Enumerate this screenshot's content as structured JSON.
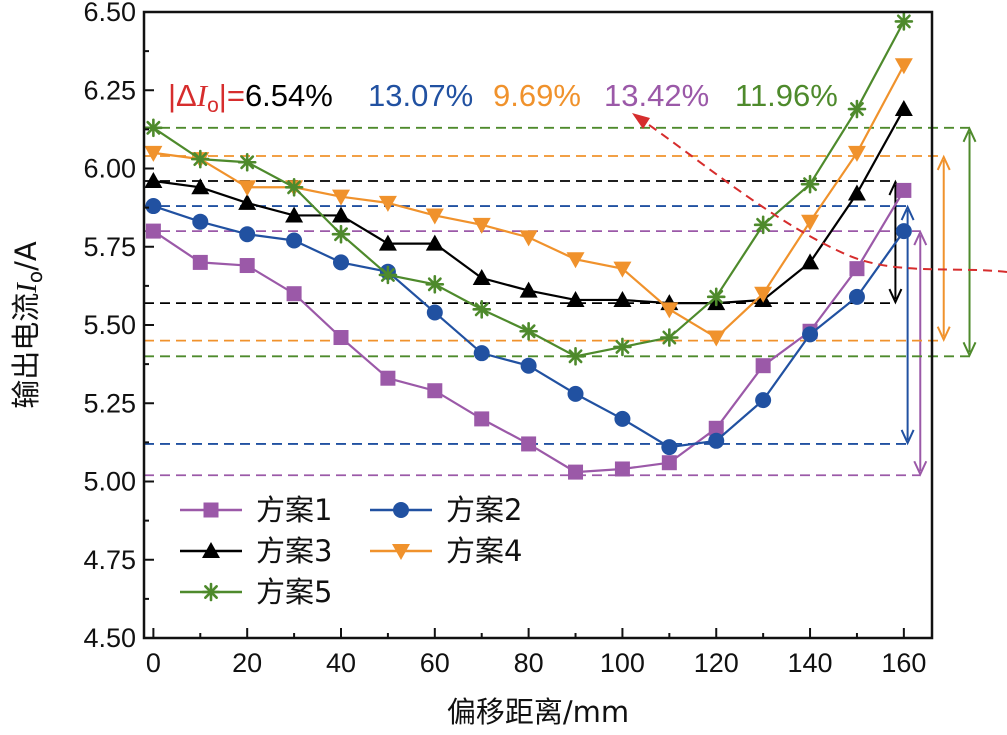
{
  "chart_data": {
    "type": "line",
    "xlabel": "偏移距离/mm",
    "ylabel_parts": {
      "prefix": "输出电流",
      "symbol": "I",
      "subscript": "o",
      "suffix": "/A"
    },
    "xlim": [
      -2,
      166
    ],
    "ylim": [
      4.5,
      6.5
    ],
    "x": [
      0,
      10,
      20,
      30,
      40,
      50,
      60,
      70,
      80,
      90,
      100,
      110,
      120,
      130,
      140,
      150,
      160
    ],
    "xticks": [
      0,
      20,
      40,
      60,
      80,
      100,
      120,
      140,
      160
    ],
    "xtick_labels": [
      "0",
      "20",
      "40",
      "60",
      "80",
      "100",
      "120",
      "140",
      "160"
    ],
    "yticks": [
      4.5,
      4.75,
      5.0,
      5.25,
      5.5,
      5.75,
      6.0,
      6.25,
      6.5
    ],
    "ytick_labels": [
      "4.50",
      "4.75",
      "5.00",
      "5.25",
      "5.50",
      "5.75",
      "6.00",
      "6.25",
      "6.50"
    ],
    "series": [
      {
        "name": "方案1",
        "color": "#9b59a8",
        "marker": "square",
        "values": [
          5.8,
          5.7,
          5.69,
          5.6,
          5.46,
          5.33,
          5.29,
          5.2,
          5.12,
          5.03,
          5.04,
          5.06,
          5.17,
          5.37,
          5.48,
          5.68,
          5.93
        ],
        "ref_max": 5.8,
        "ref_min": 5.02,
        "arrow_x": 163.5
      },
      {
        "name": "方案2",
        "color": "#2151a1",
        "marker": "circle",
        "values": [
          5.88,
          5.83,
          5.79,
          5.77,
          5.7,
          5.67,
          5.54,
          5.41,
          5.37,
          5.28,
          5.2,
          5.11,
          5.13,
          5.26,
          5.47,
          5.59,
          5.8
        ],
        "ref_max": 5.88,
        "ref_min": 5.12,
        "arrow_x": 160.8
      },
      {
        "name": "方案3",
        "color": "#000000",
        "marker": "triangle-up",
        "values": [
          5.96,
          5.94,
          5.89,
          5.85,
          5.85,
          5.76,
          5.76,
          5.65,
          5.61,
          5.58,
          5.58,
          5.57,
          5.57,
          5.58,
          5.7,
          5.92,
          6.19
        ],
        "ref_max": 5.96,
        "ref_min": 5.57,
        "arrow_x": 158.2
      },
      {
        "name": "方案4",
        "color": "#f0922c",
        "marker": "triangle-down",
        "values": [
          6.05,
          6.03,
          5.94,
          5.94,
          5.91,
          5.89,
          5.85,
          5.82,
          5.78,
          5.71,
          5.68,
          5.55,
          5.46,
          5.6,
          5.83,
          6.05,
          6.33
        ],
        "ref_max": 6.04,
        "ref_min": 5.45,
        "arrow_x": 168.5
      },
      {
        "name": "方案5",
        "color": "#4e8a2c",
        "marker": "asterisk",
        "values": [
          6.13,
          6.03,
          6.02,
          5.94,
          5.79,
          5.66,
          5.63,
          5.55,
          5.48,
          5.4,
          5.43,
          5.46,
          5.59,
          5.82,
          5.95,
          6.19,
          6.47
        ],
        "ref_max": 6.13,
        "ref_min": 5.4,
        "arrow_x": 174
      }
    ],
    "legend": {
      "placement": "bottom-left",
      "columns": 2
    },
    "annotation": {
      "prefix": "|Δ",
      "symbol": "I",
      "subscript": "o",
      "suffix": "|=",
      "label_color": "#d62d2d",
      "values": [
        {
          "text": "6.54%",
          "color": "#000000"
        },
        {
          "text": "13.07%",
          "color": "#2151a1"
        },
        {
          "text": "9.69%",
          "color": "#f0922c"
        },
        {
          "text": "13.42%",
          "color": "#9b59a8"
        },
        {
          "text": "11.96%",
          "color": "#4e8a2c"
        }
      ],
      "pointer_color": "#d62d2d"
    }
  }
}
